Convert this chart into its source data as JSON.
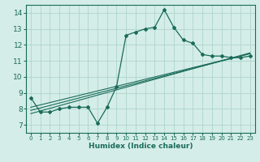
{
  "title": "",
  "xlabel": "Humidex (Indice chaleur)",
  "ylabel": "",
  "bg_color": "#d4ede8",
  "grid_color": "#aed4cc",
  "line_color": "#1a6b5a",
  "xlim": [
    -0.5,
    23.5
  ],
  "ylim": [
    6.5,
    14.5
  ],
  "xticks": [
    0,
    1,
    2,
    3,
    4,
    5,
    6,
    7,
    8,
    9,
    10,
    11,
    12,
    13,
    14,
    15,
    16,
    17,
    18,
    19,
    20,
    21,
    22,
    23
  ],
  "yticks": [
    7,
    8,
    9,
    10,
    11,
    12,
    13,
    14
  ],
  "main_x": [
    0,
    1,
    2,
    3,
    4,
    5,
    6,
    7,
    8,
    9,
    10,
    11,
    12,
    13,
    14,
    15,
    16,
    17,
    18,
    19,
    20,
    21,
    22,
    23
  ],
  "main_y": [
    8.7,
    7.8,
    7.8,
    8.0,
    8.1,
    8.1,
    8.1,
    7.1,
    8.1,
    9.4,
    12.6,
    12.8,
    13.0,
    13.1,
    14.2,
    13.1,
    12.3,
    12.1,
    11.4,
    11.3,
    11.3,
    11.2,
    11.2,
    11.3
  ],
  "line1_x": [
    0,
    23
  ],
  "line1_y": [
    8.1,
    11.45
  ],
  "line2_x": [
    0,
    23
  ],
  "line2_y": [
    7.9,
    11.45
  ],
  "line3_x": [
    0,
    23
  ],
  "line3_y": [
    7.7,
    11.5
  ]
}
